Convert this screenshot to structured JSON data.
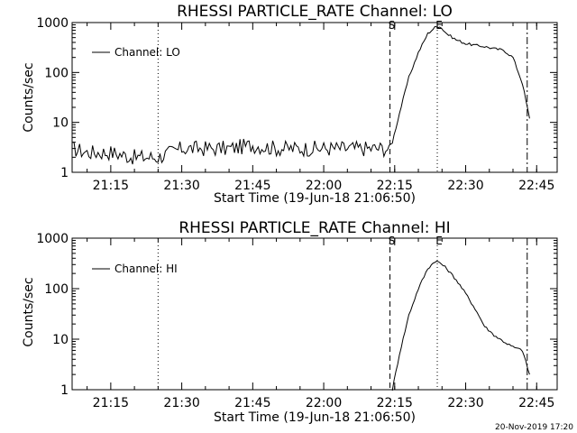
{
  "colors": {
    "background": "#ffffff",
    "foreground": "#000000"
  },
  "footer": {
    "timestamp": "20-Nov-2019 17:20"
  },
  "chart_data": [
    {
      "type": "line",
      "title": "RHESSI PARTICLE_RATE Channel: LO",
      "xlabel": "Start Time (19-Jun-18 21:06:50)",
      "ylabel": "Counts/sec",
      "yscale": "log",
      "ylim": [
        1,
        1000
      ],
      "xlim_minutes_after_start": [
        0,
        102.5
      ],
      "xtick_labels": [
        "21:15",
        "21:30",
        "21:45",
        "22:00",
        "22:15",
        "22:30",
        "22:45"
      ],
      "ytick_labels": [
        "1",
        "10",
        "100",
        "1000"
      ],
      "legend": {
        "label": "Channel: LO",
        "position": "top-left"
      },
      "vlines": [
        {
          "label": "",
          "style": "dotted",
          "time": "21:25"
        },
        {
          "label": "S",
          "style": "dashed",
          "time": "22:14"
        },
        {
          "label": "E",
          "style": "dotted",
          "time": "22:24"
        },
        {
          "label": "",
          "style": "dashdot",
          "time": "22:43"
        }
      ],
      "series": [
        {
          "name": "Channel: LO",
          "time": [
            "21:06:50",
            "21:10:00",
            "21:15:00",
            "21:20:00",
            "21:25:00",
            "21:30:00",
            "21:35:00",
            "21:40:00",
            "21:45:00",
            "21:50:00",
            "21:55:00",
            "22:00:00",
            "22:05:00",
            "22:10:00",
            "22:13:30",
            "22:14:30",
            "22:16:00",
            "22:18:00",
            "22:20:00",
            "22:22:00",
            "22:23:30",
            "22:24:30",
            "22:26:00",
            "22:28:00",
            "22:30:00",
            "22:32:00",
            "22:34:00",
            "22:36:00",
            "22:38:00",
            "22:40:00",
            "22:42:00",
            "22:43:30"
          ],
          "values": [
            3,
            2.5,
            2.5,
            2,
            2,
            3,
            3,
            3,
            3.5,
            3,
            3,
            3,
            3,
            3,
            3,
            4,
            15,
            80,
            250,
            600,
            800,
            850,
            600,
            450,
            380,
            350,
            330,
            300,
            280,
            200,
            60,
            12
          ]
        }
      ]
    },
    {
      "type": "line",
      "title": "RHESSI PARTICLE_RATE Channel: HI",
      "xlabel": "Start Time (19-Jun-18 21:06:50)",
      "ylabel": "Counts/sec",
      "yscale": "log",
      "ylim": [
        1,
        1000
      ],
      "xlim_minutes_after_start": [
        0,
        102.5
      ],
      "xtick_labels": [
        "21:15",
        "21:30",
        "21:45",
        "22:00",
        "22:15",
        "22:30",
        "22:45"
      ],
      "ytick_labels": [
        "1",
        "10",
        "100",
        "1000"
      ],
      "legend": {
        "label": "Channel: HI",
        "position": "top-left"
      },
      "vlines": [
        {
          "label": "",
          "style": "dotted",
          "time": "21:25"
        },
        {
          "label": "S",
          "style": "dashed",
          "time": "22:14"
        },
        {
          "label": "E",
          "style": "dotted",
          "time": "22:24"
        },
        {
          "label": "",
          "style": "dashdot",
          "time": "22:43"
        }
      ],
      "series": [
        {
          "name": "Channel: HI",
          "time": [
            "22:14:30",
            "22:16:00",
            "22:18:00",
            "22:20:00",
            "22:22:00",
            "22:23:30",
            "22:24:30",
            "22:26:00",
            "22:28:00",
            "22:30:00",
            "22:32:00",
            "22:34:00",
            "22:36:00",
            "22:38:00",
            "22:40:00",
            "22:42:00",
            "22:43:30"
          ],
          "values": [
            1,
            5,
            30,
            100,
            250,
            350,
            330,
            250,
            150,
            80,
            40,
            18,
            12,
            9,
            7,
            6,
            2
          ]
        }
      ]
    }
  ]
}
